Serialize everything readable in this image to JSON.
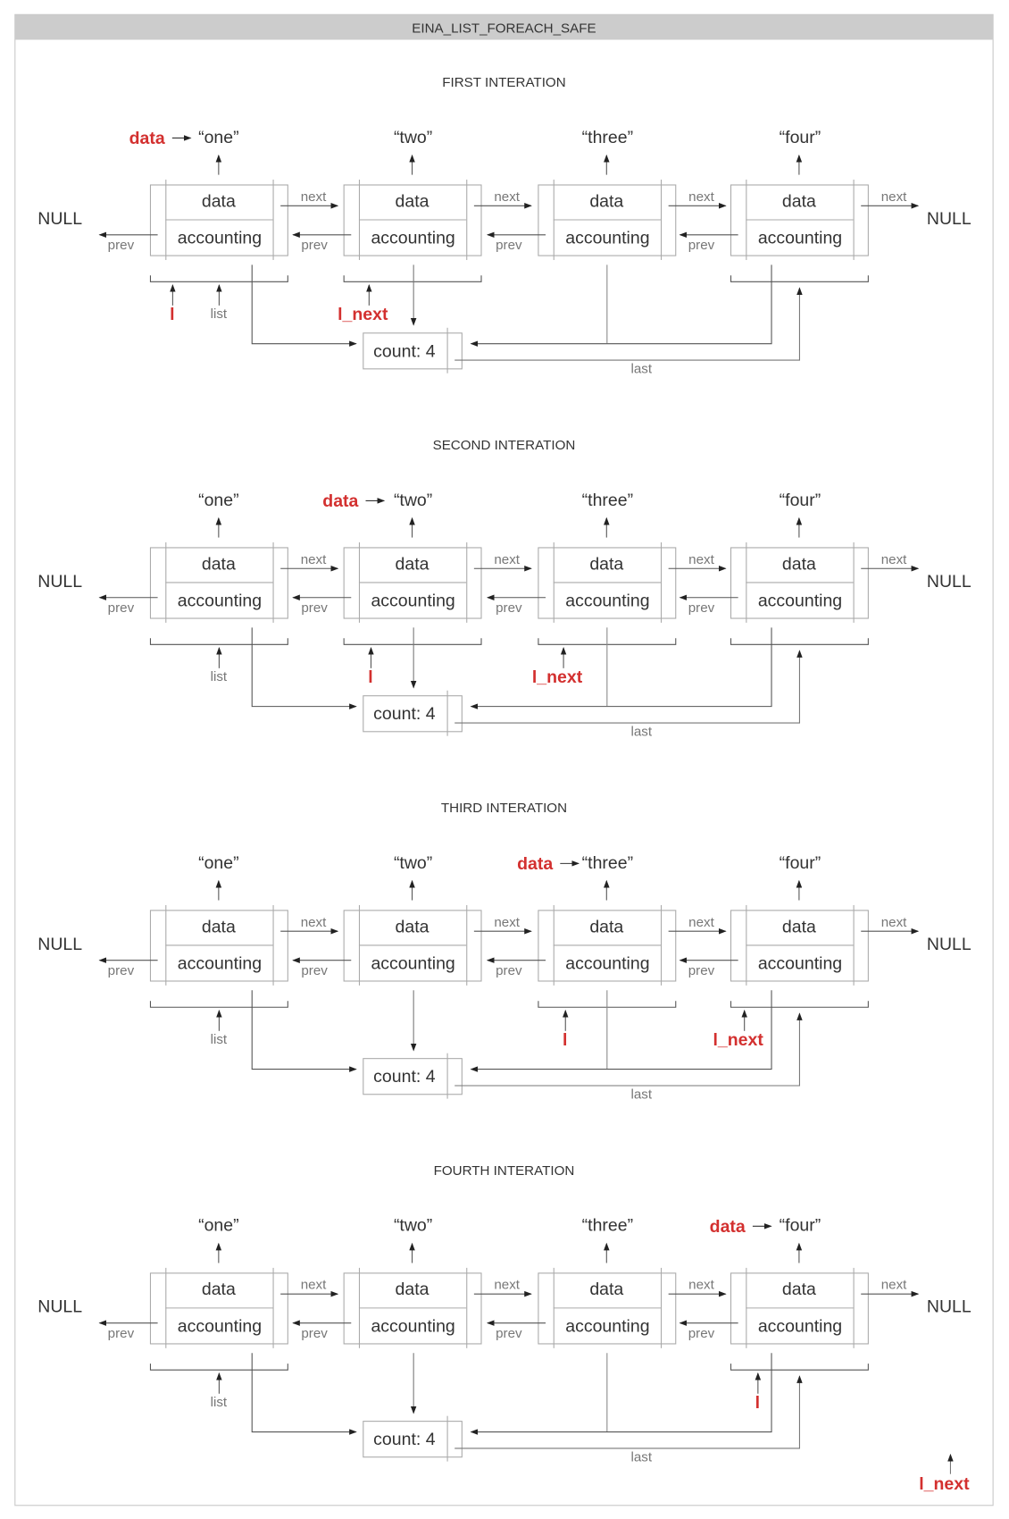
{
  "title": "EINA_LIST_FOREACH_SAFE",
  "labels": {
    "null": "NULL",
    "next": "next",
    "prev": "prev",
    "data_field": "data",
    "accounting": "accounting",
    "count": "count: 4",
    "last": "last",
    "list": "list",
    "l": "l",
    "l_next": "l_next",
    "data_ptr": "data"
  },
  "values": [
    "“one”",
    "“two”",
    "“three”",
    "“four”"
  ],
  "iterations": [
    {
      "title": "FIRST INTERATION",
      "data_node": 0,
      "l_node": 0,
      "l_next_node": 1,
      "brackets": [
        0,
        1,
        3
      ]
    },
    {
      "title": "SECOND INTERATION",
      "data_node": 1,
      "l_node": 1,
      "l_next_node": 2,
      "brackets": [
        0,
        1,
        2,
        3
      ]
    },
    {
      "title": "THIRD INTERATION",
      "data_node": 2,
      "l_node": 2,
      "l_next_node": 3,
      "brackets": [
        0,
        2,
        3
      ]
    },
    {
      "title": "FOURTH INTERATION",
      "data_node": 3,
      "l_node": 3,
      "l_next_node": "null",
      "brackets": [
        0,
        3
      ]
    }
  ],
  "colors": {
    "accent": "#d3302f",
    "header": "#cccccc",
    "border": "#c8c8c8",
    "line": "#555555",
    "box": "#aaaaaa"
  }
}
